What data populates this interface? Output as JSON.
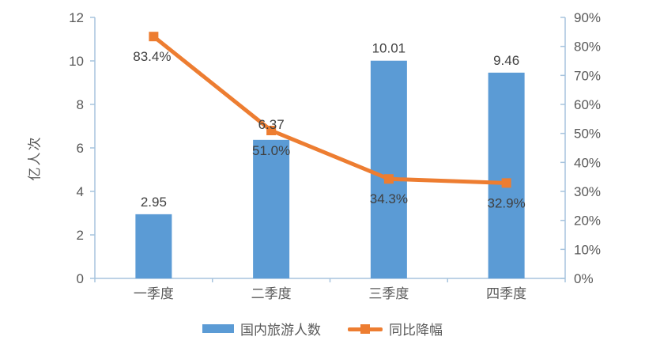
{
  "chart_data": {
    "type": "combo-bar-line",
    "categories": [
      "一季度",
      "二季度",
      "三季度",
      "四季度"
    ],
    "series": [
      {
        "name": "国内旅游人数",
        "type": "bar",
        "axis": "left",
        "values": [
          2.95,
          6.37,
          10.01,
          9.46
        ],
        "labels": [
          "2.95",
          "6.37",
          "10.01",
          "9.46"
        ],
        "color": "#5B9BD5"
      },
      {
        "name": "同比降幅",
        "type": "line",
        "axis": "right",
        "values": [
          83.4,
          51.0,
          34.3,
          32.9
        ],
        "labels": [
          "83.4%",
          "51.0%",
          "34.3%",
          "32.9%"
        ],
        "color": "#ED7D31"
      }
    ],
    "left_axis": {
      "title": "亿人次",
      "min": 0,
      "max": 12,
      "tick_interval": 2,
      "tick_labels": [
        "0",
        "2",
        "4",
        "6",
        "8",
        "10",
        "12"
      ]
    },
    "right_axis": {
      "min": 0,
      "max": 90,
      "tick_interval": 10,
      "tick_labels": [
        "0%",
        "10%",
        "20%",
        "30%",
        "40%",
        "50%",
        "60%",
        "70%",
        "80%",
        "90%"
      ]
    },
    "grid": false,
    "legend_position": "bottom"
  },
  "legend": {
    "bar_label": "国内旅游人数",
    "line_label": "同比降幅"
  },
  "colors": {
    "bar": "#5B9BD5",
    "line": "#ED7D31",
    "axis_line": "#A7C4DE",
    "tick_text": "#595959",
    "data_label": "#404040",
    "background": "#FFFFFF"
  }
}
